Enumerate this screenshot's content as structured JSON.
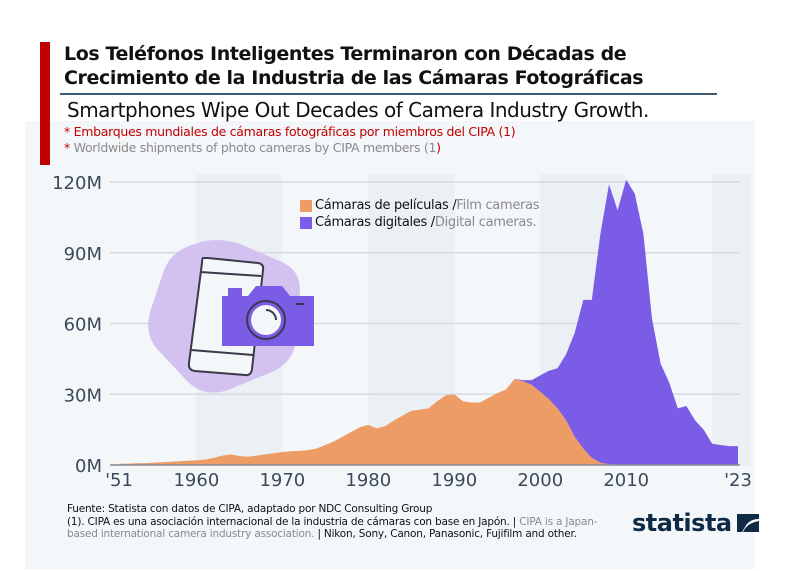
{
  "header": {
    "title_line1": "Los Teléfonos Inteligentes Terminaron con Décadas de",
    "title_line2": "Crecimiento de la Industria de las Cámaras Fotográficas",
    "subtitle": "Smartphones Wipe Out Decades of Camera Industry Growth.",
    "note_es": "* Embarques mundiales de cámaras fotográficas por miembros del CIPA (1)",
    "note_en_asterisk": "*",
    "note_en_text": " Worldwide shipments of photo cameras by  CIPA members (1",
    "note_en_close": ")",
    "accent_color": "#c00000"
  },
  "legend": {
    "film_es": "Cámaras de películas /",
    "film_en": " Film cameras",
    "digital_es": "Cámaras digitales /",
    "digital_en": " Digital cameras."
  },
  "footer": {
    "source": "Fuente: Statista con datos de CIPA, adaptado por NDC Consulting Group",
    "note_es": "(1). CIPA es una asociación internacional de la industria de cámaras con base en Japón. |",
    "note_en": " CIPA is a Japan-based international camera industry association.",
    "members": " | Nikon, Sony, Canon, Panasonic, Fujifilm and other."
  },
  "brand": {
    "logo_text": "statista",
    "logo_icon": "statista-mark-icon"
  },
  "illustration": {
    "icon": "smartphone-camera-icon"
  },
  "chart_data": {
    "type": "area",
    "stacked": true,
    "title": "Worldwide shipments of photo cameras by CIPA members",
    "xlabel": "",
    "ylabel": "",
    "xlim": [
      1951,
      2023
    ],
    "ylim": [
      0,
      120
    ],
    "y_unit": "M",
    "yticks": [
      0,
      30,
      60,
      90,
      120
    ],
    "ytick_labels": [
      "0M",
      "30M",
      "60M",
      "90M",
      "120M"
    ],
    "xticks": [
      1951,
      1960,
      1970,
      1980,
      1990,
      2000,
      2010,
      2023
    ],
    "xtick_labels": [
      "'51",
      "1960",
      "1970",
      "1980",
      "1990",
      "2000",
      "2010",
      "'23"
    ],
    "grid": true,
    "legend_position": "top-center",
    "series": [
      {
        "name": "Film cameras",
        "label_es": "Cámaras de películas",
        "color": "#ee9c66",
        "x": [
          1951,
          1952,
          1953,
          1954,
          1955,
          1956,
          1957,
          1958,
          1959,
          1960,
          1961,
          1962,
          1963,
          1964,
          1965,
          1966,
          1967,
          1968,
          1969,
          1970,
          1971,
          1972,
          1973,
          1974,
          1975,
          1976,
          1977,
          1978,
          1979,
          1980,
          1981,
          1982,
          1983,
          1984,
          1985,
          1986,
          1987,
          1988,
          1989,
          1990,
          1991,
          1992,
          1993,
          1994,
          1995,
          1996,
          1997,
          1998,
          1999,
          2000,
          2001,
          2002,
          2003,
          2004,
          2005,
          2006,
          2007,
          2008,
          2009,
          2010,
          2011,
          2012,
          2013,
          2014,
          2015,
          2016,
          2017,
          2018,
          2019,
          2020,
          2021,
          2022,
          2023
        ],
        "values": [
          0.5,
          0.6,
          0.7,
          0.8,
          1.0,
          1.2,
          1.4,
          1.6,
          1.8,
          2.0,
          2.3,
          3.0,
          4.0,
          4.5,
          3.8,
          3.5,
          4.0,
          4.5,
          5.0,
          5.5,
          5.8,
          6.0,
          6.3,
          7.0,
          8.5,
          10,
          12,
          14,
          16,
          17,
          15.5,
          16.5,
          19,
          21,
          23,
          23.5,
          24,
          27,
          29.5,
          30,
          27,
          26.5,
          26.5,
          28.5,
          30.5,
          32,
          36.5,
          35.5,
          34,
          31,
          28,
          24,
          19,
          12,
          7,
          3,
          1,
          0.3,
          0,
          0,
          0,
          0,
          0,
          0,
          0,
          0,
          0,
          0,
          0,
          0,
          0,
          0,
          0
        ]
      },
      {
        "name": "Digital cameras",
        "label_es": "Cámaras digitales",
        "color": "#7b5ce6",
        "x": [
          1951,
          1952,
          1953,
          1954,
          1955,
          1956,
          1957,
          1958,
          1959,
          1960,
          1961,
          1962,
          1963,
          1964,
          1965,
          1966,
          1967,
          1968,
          1969,
          1970,
          1971,
          1972,
          1973,
          1974,
          1975,
          1976,
          1977,
          1978,
          1979,
          1980,
          1981,
          1982,
          1983,
          1984,
          1985,
          1986,
          1987,
          1988,
          1989,
          1990,
          1991,
          1992,
          1993,
          1994,
          1995,
          1996,
          1997,
          1998,
          1999,
          2000,
          2001,
          2002,
          2003,
          2004,
          2005,
          2006,
          2007,
          2008,
          2009,
          2010,
          2011,
          2012,
          2013,
          2014,
          2015,
          2016,
          2017,
          2018,
          2019,
          2020,
          2021,
          2022,
          2023
        ],
        "values": [
          0,
          0,
          0,
          0,
          0,
          0,
          0,
          0,
          0,
          0,
          0,
          0,
          0,
          0,
          0,
          0,
          0,
          0,
          0,
          0,
          0,
          0,
          0,
          0,
          0,
          0,
          0,
          0,
          0,
          0,
          0,
          0,
          0,
          0,
          0,
          0,
          0,
          0,
          0,
          0,
          0,
          0,
          0,
          0,
          0,
          0,
          0,
          0.5,
          2,
          7,
          12,
          17,
          28,
          44,
          63,
          67,
          97,
          118.7,
          108,
          121,
          115,
          98,
          62,
          43,
          35,
          24,
          25,
          19,
          15,
          9,
          8.5,
          8,
          8
        ]
      }
    ]
  }
}
